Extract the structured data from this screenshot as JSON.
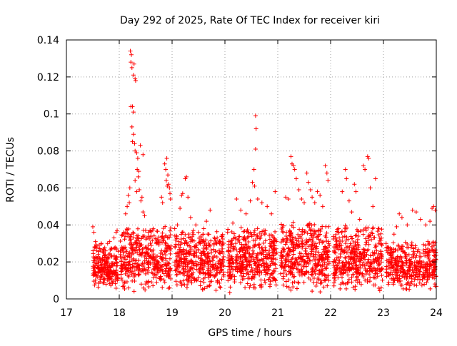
{
  "chart_data": {
    "type": "scatter",
    "title": "Day 292 of 2025, Rate Of TEC Index for receiver kiri",
    "xlabel": "GPS time / hours",
    "ylabel": "ROTI / TECUs",
    "xlim": [
      17,
      24
    ],
    "ylim": [
      0,
      0.14
    ],
    "xticks": [
      "17",
      "18",
      "19",
      "20",
      "21",
      "22",
      "23",
      "24"
    ],
    "yticks": [
      "0",
      "0.02",
      "0.04",
      "0.06",
      "0.08",
      "0.1",
      "0.12",
      "0.14"
    ],
    "grid": true,
    "marker": "+",
    "color": "#ff0000",
    "series": [
      {
        "name": "ROTI",
        "points": [
          [
            17.5,
            0.039
          ],
          [
            17.52,
            0.036
          ],
          [
            17.55,
            0.031
          ],
          [
            17.58,
            0.028
          ],
          [
            17.6,
            0.024
          ],
          [
            17.63,
            0.022
          ],
          [
            17.66,
            0.03
          ],
          [
            17.7,
            0.027
          ],
          [
            17.74,
            0.026
          ],
          [
            17.78,
            0.03
          ],
          [
            17.82,
            0.031
          ],
          [
            17.86,
            0.027
          ],
          [
            17.9,
            0.033
          ],
          [
            17.94,
            0.036
          ],
          [
            17.96,
            0.037
          ],
          [
            18.05,
            0.028
          ],
          [
            18.08,
            0.025
          ],
          [
            18.12,
            0.046
          ],
          [
            18.15,
            0.05
          ],
          [
            18.17,
            0.056
          ],
          [
            18.19,
            0.052
          ],
          [
            18.2,
            0.06
          ],
          [
            18.21,
            0.134
          ],
          [
            18.23,
            0.132
          ],
          [
            18.22,
            0.128
          ],
          [
            18.24,
            0.125
          ],
          [
            18.27,
            0.121
          ],
          [
            18.28,
            0.127
          ],
          [
            18.3,
            0.119
          ],
          [
            18.31,
            0.118
          ],
          [
            18.22,
            0.104
          ],
          [
            18.25,
            0.104
          ],
          [
            18.27,
            0.101
          ],
          [
            18.24,
            0.093
          ],
          [
            18.27,
            0.089
          ],
          [
            18.3,
            0.08
          ],
          [
            18.33,
            0.079
          ],
          [
            18.35,
            0.076
          ],
          [
            18.25,
            0.085
          ],
          [
            18.29,
            0.084
          ],
          [
            18.34,
            0.07
          ],
          [
            18.37,
            0.069
          ],
          [
            18.36,
            0.066
          ],
          [
            18.3,
            0.064
          ],
          [
            18.38,
            0.059
          ],
          [
            18.33,
            0.058
          ],
          [
            18.43,
            0.055
          ],
          [
            18.41,
            0.053
          ],
          [
            18.45,
            0.047
          ],
          [
            18.48,
            0.045
          ],
          [
            18.4,
            0.083
          ],
          [
            18.45,
            0.078
          ],
          [
            18.55,
            0.036
          ],
          [
            18.6,
            0.034
          ],
          [
            18.7,
            0.03
          ],
          [
            18.75,
            0.032
          ],
          [
            18.8,
            0.055
          ],
          [
            18.82,
            0.052
          ],
          [
            18.86,
            0.073
          ],
          [
            18.88,
            0.07
          ],
          [
            18.9,
            0.076
          ],
          [
            18.92,
            0.067
          ],
          [
            18.93,
            0.062
          ],
          [
            18.95,
            0.06
          ],
          [
            18.89,
            0.064
          ],
          [
            18.91,
            0.061
          ],
          [
            18.96,
            0.057
          ],
          [
            18.97,
            0.054
          ],
          [
            19.05,
            0.038
          ],
          [
            19.1,
            0.04
          ],
          [
            19.15,
            0.049
          ],
          [
            19.18,
            0.056
          ],
          [
            19.2,
            0.057
          ],
          [
            19.25,
            0.065
          ],
          [
            19.27,
            0.066
          ],
          [
            19.3,
            0.055
          ],
          [
            19.35,
            0.044
          ],
          [
            19.4,
            0.037
          ],
          [
            19.45,
            0.04
          ],
          [
            19.5,
            0.036
          ],
          [
            19.55,
            0.033
          ],
          [
            19.6,
            0.038
          ],
          [
            19.65,
            0.042
          ],
          [
            19.72,
            0.048
          ],
          [
            19.8,
            0.033
          ],
          [
            19.9,
            0.03
          ],
          [
            20.05,
            0.036
          ],
          [
            20.15,
            0.041
          ],
          [
            20.22,
            0.054
          ],
          [
            20.3,
            0.048
          ],
          [
            20.4,
            0.046
          ],
          [
            20.48,
            0.053
          ],
          [
            20.52,
            0.063
          ],
          [
            20.55,
            0.07
          ],
          [
            20.56,
            0.061
          ],
          [
            20.58,
            0.099
          ],
          [
            20.59,
            0.092
          ],
          [
            20.58,
            0.081
          ],
          [
            20.62,
            0.054
          ],
          [
            20.7,
            0.052
          ],
          [
            20.8,
            0.05
          ],
          [
            20.88,
            0.046
          ],
          [
            20.95,
            0.058
          ],
          [
            21.1,
            0.036
          ],
          [
            21.15,
            0.055
          ],
          [
            21.2,
            0.054
          ],
          [
            21.25,
            0.077
          ],
          [
            21.27,
            0.073
          ],
          [
            21.3,
            0.072
          ],
          [
            21.32,
            0.07
          ],
          [
            21.35,
            0.065
          ],
          [
            21.4,
            0.059
          ],
          [
            21.45,
            0.054
          ],
          [
            21.5,
            0.052
          ],
          [
            21.55,
            0.068
          ],
          [
            21.58,
            0.063
          ],
          [
            21.62,
            0.059
          ],
          [
            21.65,
            0.055
          ],
          [
            21.7,
            0.052
          ],
          [
            21.75,
            0.058
          ],
          [
            21.8,
            0.056
          ],
          [
            21.85,
            0.05
          ],
          [
            21.9,
            0.072
          ],
          [
            21.93,
            0.068
          ],
          [
            21.95,
            0.064
          ],
          [
            22.1,
            0.029
          ],
          [
            22.15,
            0.038
          ],
          [
            22.22,
            0.058
          ],
          [
            22.28,
            0.07
          ],
          [
            22.3,
            0.065
          ],
          [
            22.35,
            0.053
          ],
          [
            22.4,
            0.047
          ],
          [
            22.45,
            0.062
          ],
          [
            22.48,
            0.058
          ],
          [
            22.55,
            0.043
          ],
          [
            22.62,
            0.072
          ],
          [
            22.65,
            0.07
          ],
          [
            22.7,
            0.077
          ],
          [
            22.72,
            0.076
          ],
          [
            22.75,
            0.06
          ],
          [
            22.8,
            0.05
          ],
          [
            22.85,
            0.065
          ],
          [
            22.9,
            0.038
          ],
          [
            23.05,
            0.03
          ],
          [
            23.1,
            0.028
          ],
          [
            23.2,
            0.035
          ],
          [
            23.25,
            0.039
          ],
          [
            23.3,
            0.046
          ],
          [
            23.35,
            0.044
          ],
          [
            23.45,
            0.04
          ],
          [
            23.55,
            0.048
          ],
          [
            23.62,
            0.047
          ],
          [
            23.7,
            0.043
          ],
          [
            23.8,
            0.04
          ],
          [
            23.88,
            0.042
          ],
          [
            23.92,
            0.049
          ],
          [
            23.95,
            0.05
          ],
          [
            23.98,
            0.048
          ]
        ],
        "bands": [
          [
            17.5,
            17.98,
            0.005,
            0.03,
            230
          ],
          [
            18.02,
            18.98,
            0.003,
            0.04,
            420
          ],
          [
            19.05,
            19.98,
            0.003,
            0.038,
            400
          ],
          [
            20.05,
            20.98,
            0.003,
            0.04,
            420
          ],
          [
            21.05,
            21.98,
            0.003,
            0.042,
            420
          ],
          [
            22.05,
            22.98,
            0.003,
            0.04,
            420
          ],
          [
            23.05,
            24.0,
            0.003,
            0.032,
            400
          ]
        ]
      }
    ]
  }
}
